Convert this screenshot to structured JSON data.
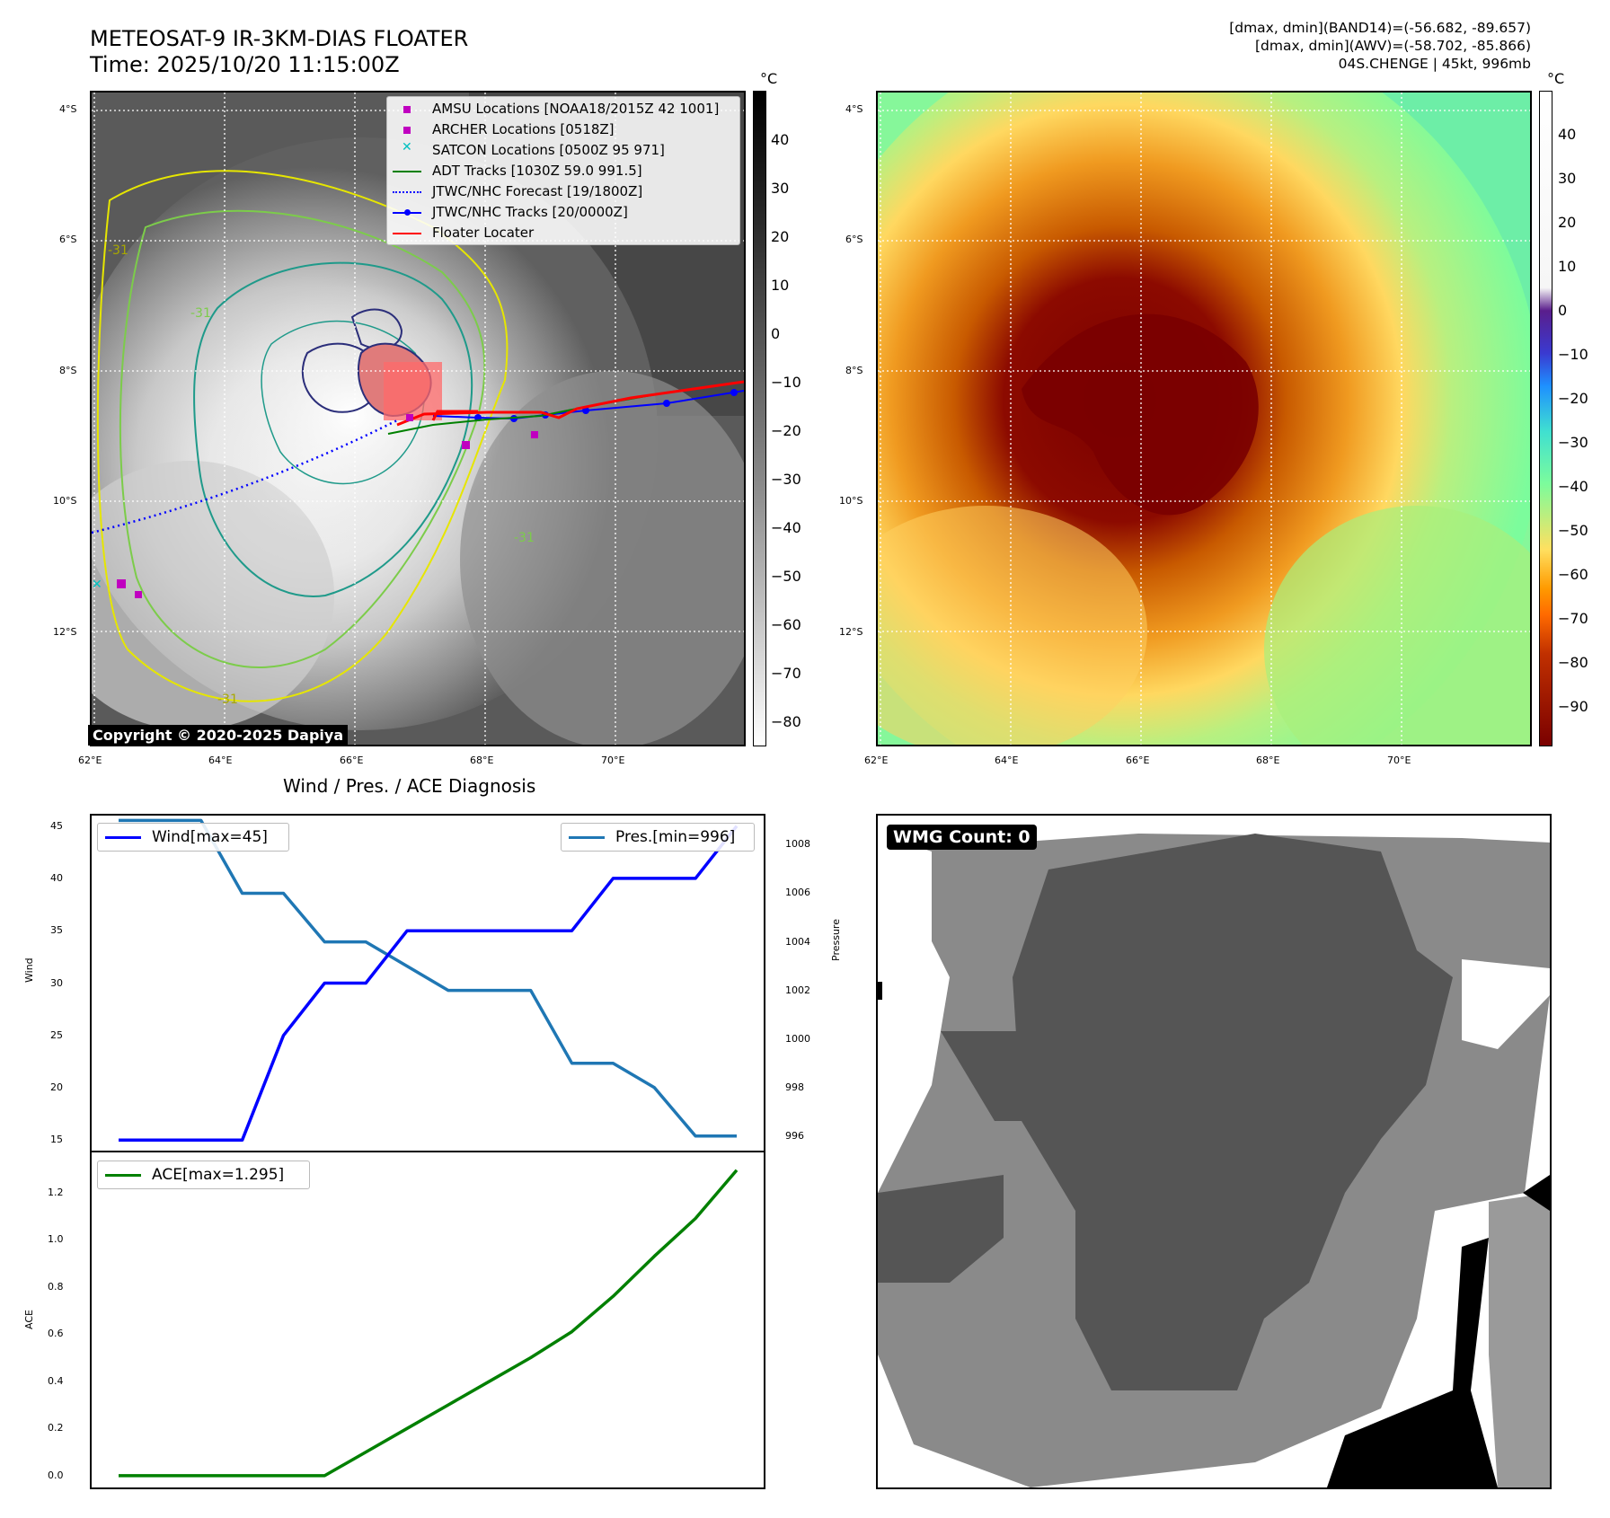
{
  "header": {
    "title_line1": "METEOSAT-9 IR-3KM-DIAS FLOATER",
    "title_line2": "Time: 2025/10/20 11:15:00Z",
    "stats_line1": "[dmax, dmin](BAND14)=(-56.682, -89.657)",
    "stats_line2": "[dmax, dmin](AWV)=(-58.702, -85.866)",
    "stats_line3": "04S.CHENGE | 45kt, 996mb"
  },
  "maps": {
    "lat_labels": [
      "4°S",
      "6°S",
      "8°S",
      "10°S",
      "12°S"
    ],
    "lon_labels": [
      "62°E",
      "64°E",
      "66°E",
      "68°E",
      "70°E"
    ],
    "unit": "°C",
    "ir_cbar_ticks": [
      "40",
      "30",
      "20",
      "10",
      "0",
      "−10",
      "−20",
      "−30",
      "−40",
      "−50",
      "−60",
      "−70",
      "−80"
    ],
    "wv_cbar_ticks": [
      "40",
      "30",
      "20",
      "10",
      "0",
      "−10",
      "−20",
      "−30",
      "−40",
      "−50",
      "−60",
      "−70",
      "−80",
      "−90"
    ],
    "copyright": "Copyright © 2020-2025 Dapiya",
    "contour_labels": [
      "-31",
      "-31",
      "-31",
      "-31"
    ],
    "legend": [
      {
        "label": "AMSU Locations [NOAA18/2015Z 42 1001]",
        "color": "#c000c0",
        "marker": "square"
      },
      {
        "label": "ARCHER Locations [0518Z]",
        "color": "#c000c0",
        "marker": "square"
      },
      {
        "label": "SATCON Locations [0500Z 95 971]",
        "color": "#00c0c0",
        "marker": "x"
      },
      {
        "label": "ADT Tracks [1030Z 59.0 991.5]",
        "color": "#008000",
        "marker": "line"
      },
      {
        "label": "JTWC/NHC Forecast [19/1800Z]",
        "color": "#0000ff",
        "marker": "dotted"
      },
      {
        "label": "JTWC/NHC Tracks [20/0000Z]",
        "color": "#0000ff",
        "marker": "line-dot"
      },
      {
        "label": "Floater Locater",
        "color": "#ff0000",
        "marker": "line"
      }
    ]
  },
  "diag": {
    "title": "Wind / Pres. / ACE Diagnosis",
    "wind_ylabel": "Wind",
    "pres_ylabel": "Pressure",
    "ace_ylabel": "ACE",
    "wind_legend": "Wind[max=45]",
    "pres_legend": "Pres.[min=996]",
    "ace_legend": "ACE[max=1.295]",
    "wind_ticks": [
      "45",
      "40",
      "35",
      "30",
      "25",
      "20",
      "15"
    ],
    "pres_ticks": [
      "1008",
      "1006",
      "1004",
      "1002",
      "1000",
      "998",
      "996"
    ],
    "ace_ticks": [
      "1.2",
      "1.0",
      "0.8",
      "0.6",
      "0.4",
      "0.2",
      "0.0"
    ]
  },
  "wmg": {
    "label": "WMG Count: 0"
  },
  "chart_data": [
    {
      "type": "line",
      "title": "Wind / Pres. / ACE Diagnosis",
      "x": [
        0,
        1,
        2,
        3,
        4,
        5,
        6,
        7,
        8,
        9,
        10,
        11,
        12,
        13,
        14,
        15
      ],
      "series": [
        {
          "name": "Wind[max=45]",
          "axis": "left",
          "color": "#0000ff",
          "values": [
            15,
            15,
            15,
            15,
            25,
            30,
            30,
            35,
            35,
            35,
            35,
            35,
            40,
            40,
            40,
            45
          ]
        },
        {
          "name": "Pres.[min=996]",
          "axis": "right",
          "color": "#1f77b4",
          "values": [
            1009,
            1009,
            1009,
            1006,
            1006,
            1004,
            1004,
            1003,
            1002,
            1002,
            1002,
            999,
            999,
            998,
            996,
            996
          ]
        }
      ],
      "ylabel": "Wind",
      "ylim": [
        14,
        46
      ],
      "ylabel_right": "Pressure",
      "ylim_right": [
        995.4,
        1009.2
      ]
    },
    {
      "type": "line",
      "x": [
        0,
        1,
        2,
        3,
        4,
        5,
        6,
        7,
        8,
        9,
        10,
        11,
        12,
        13,
        14,
        15
      ],
      "series": [
        {
          "name": "ACE[max=1.295]",
          "color": "#008000",
          "values": [
            0,
            0,
            0,
            0,
            0,
            0,
            0.1,
            0.2,
            0.3,
            0.4,
            0.5,
            0.61,
            0.76,
            0.93,
            1.09,
            1.295
          ]
        }
      ],
      "ylabel": "ACE",
      "ylim": [
        -0.05,
        1.37
      ]
    }
  ]
}
